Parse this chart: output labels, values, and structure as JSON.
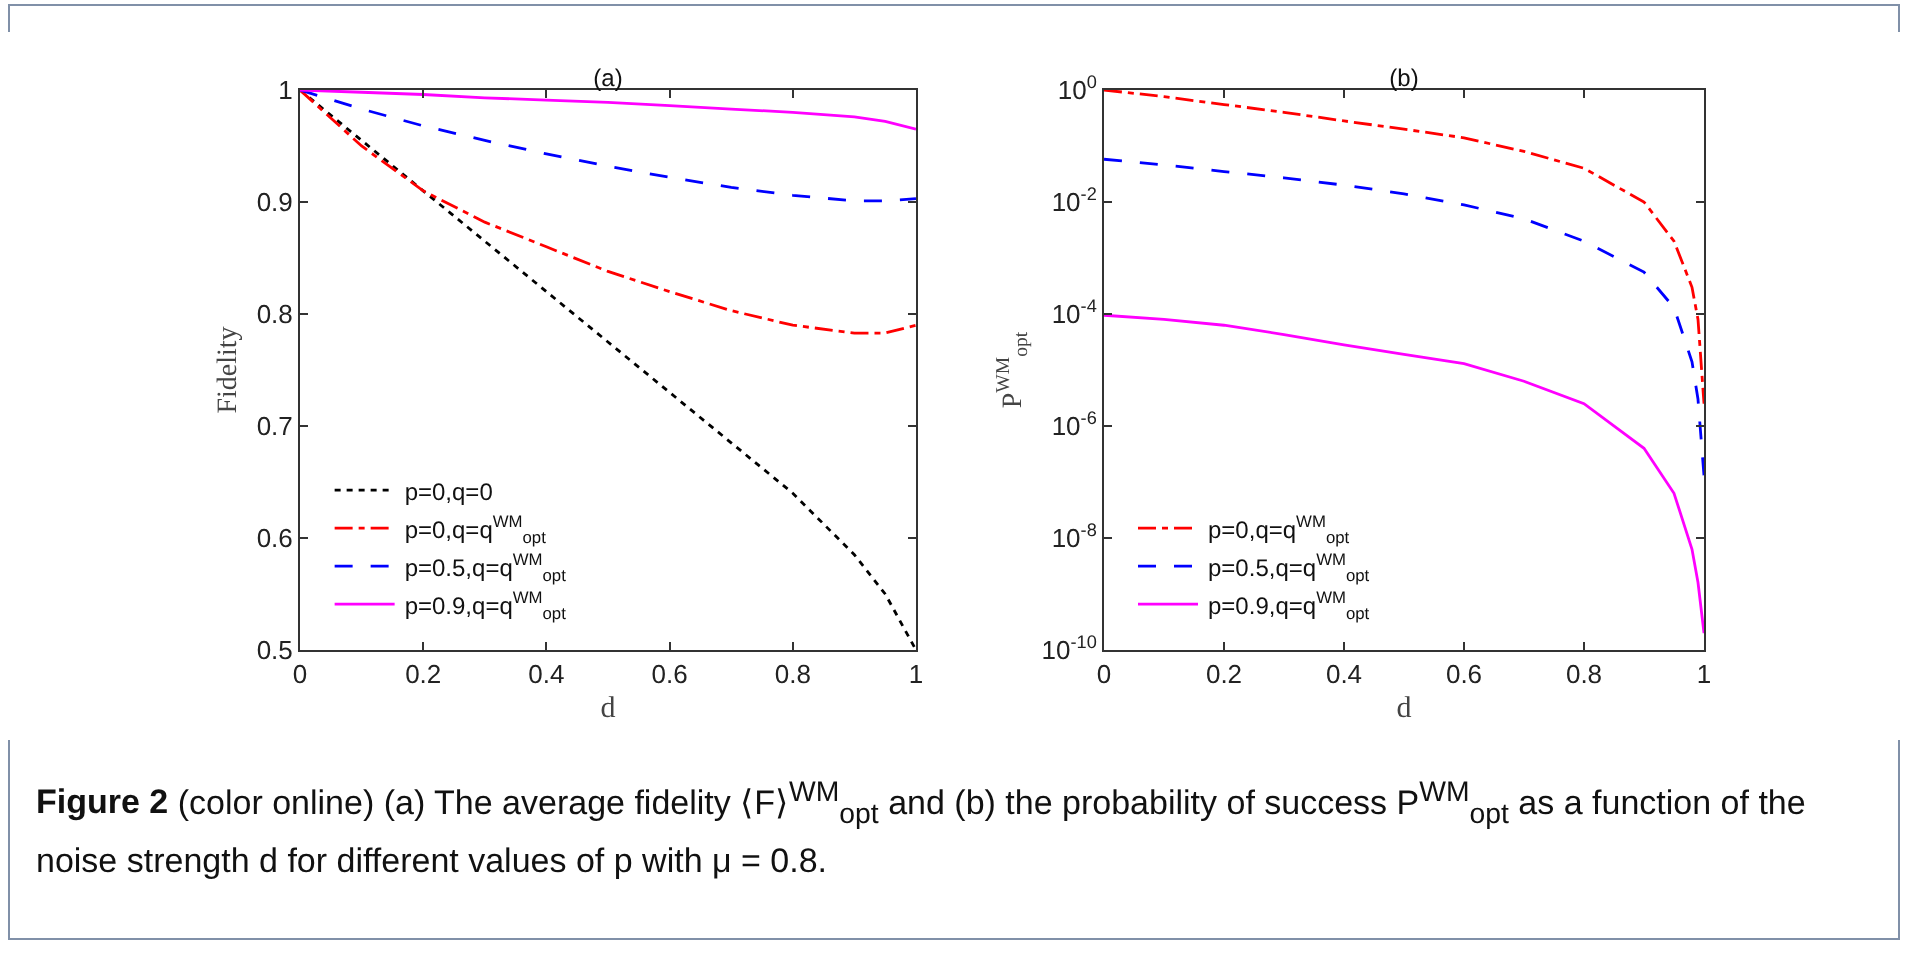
{
  "chart_data": [
    {
      "type": "line",
      "title": "(a)",
      "xlabel": "d",
      "ylabel": "Fidelity",
      "xlim": [
        0,
        1
      ],
      "ylim": [
        0.5,
        1
      ],
      "xticks": [
        0,
        0.2,
        0.4,
        0.6,
        0.8,
        1
      ],
      "yticks": [
        0.5,
        0.6,
        0.7,
        0.8,
        0.9,
        1
      ],
      "legend": "bottom left",
      "x": [
        0,
        0.1,
        0.2,
        0.3,
        0.4,
        0.5,
        0.6,
        0.7,
        0.8,
        0.9,
        0.95,
        1
      ],
      "series": [
        {
          "name": "p=0,q=0",
          "color": "#000000",
          "line_style": "dotted",
          "values": [
            1,
            0.955,
            0.91,
            0.865,
            0.82,
            0.775,
            0.73,
            0.685,
            0.64,
            0.585,
            0.55,
            0.5
          ]
        },
        {
          "name": "p=0,q=q$^{WM}$$_{opt}$",
          "color": "#ff0000",
          "line_style": "dashdot",
          "values": [
            1,
            0.95,
            0.91,
            0.882,
            0.86,
            0.838,
            0.82,
            0.803,
            0.79,
            0.783,
            0.783,
            0.79
          ]
        },
        {
          "name": "p=0.5,q=q$^{WM}$$_{opt}$",
          "color": "#0000ff",
          "line_style": "dashed",
          "values": [
            1,
            0.983,
            0.968,
            0.955,
            0.943,
            0.932,
            0.922,
            0.913,
            0.906,
            0.901,
            0.901,
            0.903
          ]
        },
        {
          "name": "p=0.9,q=q$^{WM}$$_{opt}$",
          "color": "#ff00ff",
          "line_style": "solid",
          "values": [
            1,
            0.998,
            0.996,
            0.993,
            0.991,
            0.989,
            0.986,
            0.983,
            0.98,
            0.976,
            0.972,
            0.965
          ]
        }
      ],
      "annotations": [
        "Figure 2",
        "(color online) (a) The average fidelity ⟨F⟩$^{WM}$$_{opt}$ and (b) the probability of success P$^{WM}$$_{opt}$ as a function of the noise strength d for different values of p with μ = 0.8."
      ]
    },
    {
      "type": "line",
      "title": "(b)",
      "xlabel": "d",
      "ylabel": "P$^{WM}$$_{opt}$",
      "log": "y",
      "xlim": [
        0,
        1
      ],
      "ylim": [
        1e-10,
        1
      ],
      "xticks": [
        0,
        0.2,
        0.4,
        0.6,
        0.8,
        1
      ],
      "yticks": [
        {
          "value": 1e-10,
          "label": "10$^{-10}$"
        },
        {
          "value": 1e-08,
          "label": "10$^{-8}$"
        },
        {
          "value": 1e-06,
          "label": "10$^{-6}$"
        },
        {
          "value": 0.0001,
          "label": "10$^{-4}$"
        },
        {
          "value": 0.01,
          "label": "10$^{-2}$"
        },
        {
          "value": 1,
          "label": "10$^{0}$"
        }
      ],
      "legend": "bottom left",
      "x": [
        0,
        0.1,
        0.2,
        0.3,
        0.4,
        0.5,
        0.6,
        0.7,
        0.8,
        0.9,
        0.95,
        0.98,
        0.99,
        1
      ],
      "series": [
        {
          "name": "p=0,q=q$^{WM}$$_{opt}$",
          "color": "#ff0000",
          "line_style": "dashdot",
          "values": [
            1,
            0.76,
            0.55,
            0.4,
            0.28,
            0.2,
            0.14,
            0.08,
            0.04,
            0.01,
            0.002,
            0.0003,
            8e-05,
            2.5e-06
          ]
        },
        {
          "name": "p=0.5,q=q$^{WM}$$_{opt}$",
          "color": "#0000ff",
          "line_style": "dashed",
          "values": [
            0.058,
            0.046,
            0.035,
            0.027,
            0.02,
            0.014,
            0.0089,
            0.005,
            0.002,
            0.00056,
            0.00013,
            1.4e-05,
            3e-06,
            1.3e-07
          ]
        },
        {
          "name": "p=0.9,q=q$^{WM}$$_{opt}$",
          "color": "#ff00ff",
          "line_style": "solid",
          "values": [
            9.5e-05,
            8e-05,
            6.3e-05,
            4.3e-05,
            2.8e-05,
            1.9e-05,
            1.3e-05,
            6.3e-06,
            2.5e-06,
            4e-07,
            6.3e-08,
            6.3e-09,
            1.6e-09,
            2e-10
          ]
        }
      ]
    }
  ]
}
